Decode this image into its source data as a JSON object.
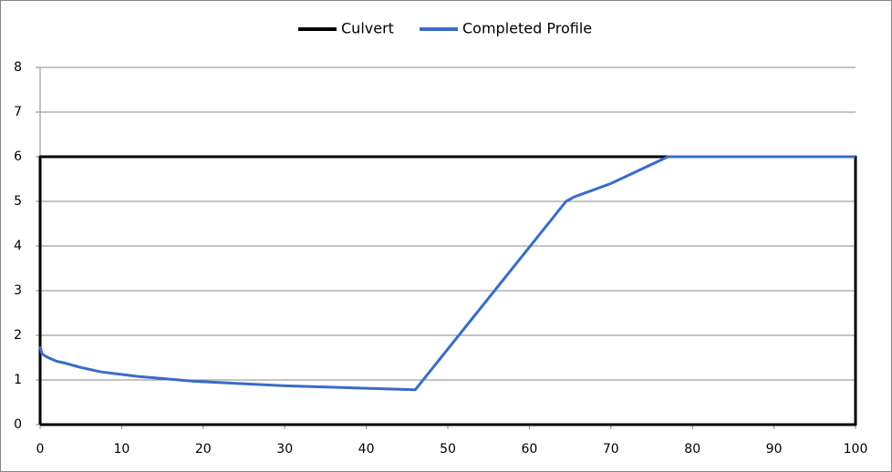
{
  "chart_data": {
    "type": "line",
    "series": [
      {
        "name": "Culvert",
        "color": "#000000",
        "x": [
          0,
          0,
          100,
          100,
          0
        ],
        "values": [
          0,
          6,
          6,
          0,
          0
        ]
      },
      {
        "name": "Completed Profile",
        "color": "#3a6bc9",
        "x": [
          0,
          0.2,
          0.5,
          1,
          2,
          3,
          5,
          7.5,
          12,
          19,
          30,
          46,
          64.5,
          65.5,
          70,
          77,
          100
        ],
        "values": [
          1.75,
          1.6,
          1.55,
          1.5,
          1.42,
          1.38,
          1.28,
          1.18,
          1.08,
          0.97,
          0.87,
          0.78,
          5,
          5.1,
          5.4,
          6,
          6
        ]
      }
    ],
    "xlim": [
      0,
      100
    ],
    "xticks": [
      0,
      10,
      20,
      30,
      40,
      50,
      60,
      70,
      80,
      90,
      100
    ],
    "ylim": [
      0,
      8
    ],
    "yticks": [
      0,
      1,
      2,
      3,
      4,
      5,
      6,
      7,
      8
    ],
    "grid": true,
    "legend": "top"
  }
}
